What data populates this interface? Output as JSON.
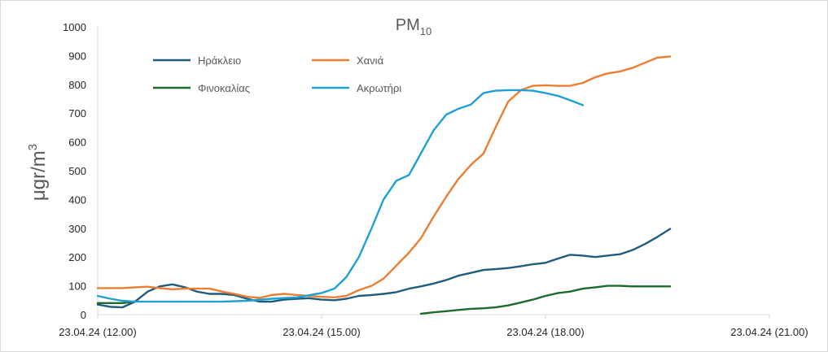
{
  "chart_data": {
    "type": "line",
    "title": "PM",
    "title_sub": "10",
    "ylabel_main": "μgr/m",
    "ylabel_sup": "3",
    "ylim": [
      0,
      1000
    ],
    "yticks": [
      0,
      100,
      200,
      300,
      400,
      500,
      600,
      700,
      800,
      900,
      1000
    ],
    "xlim": [
      12.0,
      21.0
    ],
    "xticks": [
      {
        "x": 12.0,
        "label": "23.04.24 (12.00)"
      },
      {
        "x": 15.0,
        "label": "23.04.24 (15.00)"
      },
      {
        "x": 18.0,
        "label": "23.04.24 (18.00)"
      },
      {
        "x": 21.0,
        "label": "23.04.24 (21.00)"
      }
    ],
    "series": [
      {
        "name": "Ηράκλειο",
        "color": "#1f5c7e",
        "points": [
          [
            12.0,
            35
          ],
          [
            12.17,
            27
          ],
          [
            12.33,
            25
          ],
          [
            12.5,
            45
          ],
          [
            12.67,
            80
          ],
          [
            12.83,
            98
          ],
          [
            13.0,
            105
          ],
          [
            13.17,
            95
          ],
          [
            13.33,
            80
          ],
          [
            13.5,
            72
          ],
          [
            13.67,
            72
          ],
          [
            13.83,
            68
          ],
          [
            14.0,
            55
          ],
          [
            14.17,
            45
          ],
          [
            14.33,
            45
          ],
          [
            14.5,
            52
          ],
          [
            14.67,
            55
          ],
          [
            14.83,
            57
          ],
          [
            15.0,
            52
          ],
          [
            15.17,
            50
          ],
          [
            15.33,
            55
          ],
          [
            15.5,
            65
          ],
          [
            15.67,
            68
          ],
          [
            15.83,
            72
          ],
          [
            16.0,
            78
          ],
          [
            16.17,
            90
          ],
          [
            16.33,
            98
          ],
          [
            16.5,
            108
          ],
          [
            16.67,
            120
          ],
          [
            16.83,
            135
          ],
          [
            17.0,
            145
          ],
          [
            17.17,
            155
          ],
          [
            17.33,
            158
          ],
          [
            17.5,
            162
          ],
          [
            17.67,
            168
          ],
          [
            17.83,
            175
          ],
          [
            18.0,
            180
          ],
          [
            18.17,
            195
          ],
          [
            18.33,
            208
          ],
          [
            18.5,
            205
          ],
          [
            18.67,
            200
          ],
          [
            18.83,
            205
          ],
          [
            19.0,
            210
          ],
          [
            19.17,
            225
          ],
          [
            19.33,
            245
          ],
          [
            19.5,
            270
          ],
          [
            19.67,
            298
          ]
        ]
      },
      {
        "name": "Χανιά",
        "color": "#ed7d31",
        "points": [
          [
            12.0,
            92
          ],
          [
            12.17,
            92
          ],
          [
            12.33,
            92
          ],
          [
            12.5,
            95
          ],
          [
            12.67,
            97
          ],
          [
            12.83,
            92
          ],
          [
            13.0,
            88
          ],
          [
            13.17,
            90
          ],
          [
            13.33,
            90
          ],
          [
            13.5,
            90
          ],
          [
            13.67,
            80
          ],
          [
            13.83,
            72
          ],
          [
            14.0,
            62
          ],
          [
            14.17,
            58
          ],
          [
            14.33,
            68
          ],
          [
            14.5,
            72
          ],
          [
            14.67,
            68
          ],
          [
            14.83,
            65
          ],
          [
            15.0,
            62
          ],
          [
            15.17,
            60
          ],
          [
            15.33,
            65
          ],
          [
            15.5,
            85
          ],
          [
            15.67,
            100
          ],
          [
            15.83,
            125
          ],
          [
            16.0,
            170
          ],
          [
            16.17,
            215
          ],
          [
            16.33,
            265
          ],
          [
            16.5,
            340
          ],
          [
            16.67,
            410
          ],
          [
            16.83,
            470
          ],
          [
            17.0,
            520
          ],
          [
            17.17,
            560
          ],
          [
            17.33,
            650
          ],
          [
            17.5,
            740
          ],
          [
            17.67,
            780
          ],
          [
            17.83,
            795
          ],
          [
            18.0,
            797
          ],
          [
            18.17,
            795
          ],
          [
            18.33,
            795
          ],
          [
            18.5,
            805
          ],
          [
            18.67,
            825
          ],
          [
            18.83,
            838
          ],
          [
            19.0,
            845
          ],
          [
            19.17,
            858
          ],
          [
            19.33,
            875
          ],
          [
            19.5,
            893
          ],
          [
            19.67,
            897
          ]
        ]
      },
      {
        "name": "Φινοκαλίας",
        "color": "#1d6b2a",
        "points": [
          [
            12.0,
            40
          ],
          [
            12.17,
            40
          ],
          [
            12.33,
            40
          ],
          [
            12.5,
            45
          ],
          [
            16.33,
            3
          ],
          [
            16.5,
            8
          ],
          [
            16.67,
            12
          ],
          [
            16.83,
            16
          ],
          [
            17.0,
            20
          ],
          [
            17.17,
            22
          ],
          [
            17.33,
            25
          ],
          [
            17.5,
            32
          ],
          [
            17.67,
            42
          ],
          [
            17.83,
            52
          ],
          [
            18.0,
            65
          ],
          [
            18.17,
            75
          ],
          [
            18.33,
            80
          ],
          [
            18.5,
            90
          ],
          [
            18.67,
            95
          ],
          [
            18.83,
            100
          ],
          [
            19.0,
            100
          ],
          [
            19.17,
            98
          ],
          [
            19.33,
            98
          ],
          [
            19.5,
            98
          ],
          [
            19.67,
            98
          ]
        ],
        "segments": [
          [
            0,
            3
          ],
          [
            4,
            24
          ]
        ]
      },
      {
        "name": "Ακρωτήρι",
        "color": "#1ea0d6",
        "points": [
          [
            12.0,
            65
          ],
          [
            12.17,
            55
          ],
          [
            12.33,
            48
          ],
          [
            12.5,
            45
          ],
          [
            12.67,
            45
          ],
          [
            12.83,
            45
          ],
          [
            13.0,
            45
          ],
          [
            13.33,
            45
          ],
          [
            13.67,
            45
          ],
          [
            14.0,
            48
          ],
          [
            14.33,
            55
          ],
          [
            14.67,
            60
          ],
          [
            15.0,
            75
          ],
          [
            15.17,
            90
          ],
          [
            15.33,
            130
          ],
          [
            15.5,
            200
          ],
          [
            15.67,
            300
          ],
          [
            15.83,
            400
          ],
          [
            16.0,
            465
          ],
          [
            16.17,
            485
          ],
          [
            16.33,
            560
          ],
          [
            16.5,
            640
          ],
          [
            16.67,
            695
          ],
          [
            16.83,
            715
          ],
          [
            17.0,
            730
          ],
          [
            17.17,
            770
          ],
          [
            17.33,
            778
          ],
          [
            17.5,
            780
          ],
          [
            17.67,
            780
          ],
          [
            17.83,
            778
          ],
          [
            18.0,
            770
          ],
          [
            18.17,
            760
          ],
          [
            18.33,
            745
          ],
          [
            18.5,
            728
          ]
        ]
      }
    ],
    "legend": [
      {
        "label": "Ηράκλειο",
        "color": "#1f5c7e"
      },
      {
        "label": "Χανιά",
        "color": "#ed7d31"
      },
      {
        "label": "Φινοκαλίας",
        "color": "#1d6b2a"
      },
      {
        "label": "Ακρωτήρι",
        "color": "#1ea0d6"
      }
    ],
    "legend_placement": "top-left",
    "grid": false
  }
}
